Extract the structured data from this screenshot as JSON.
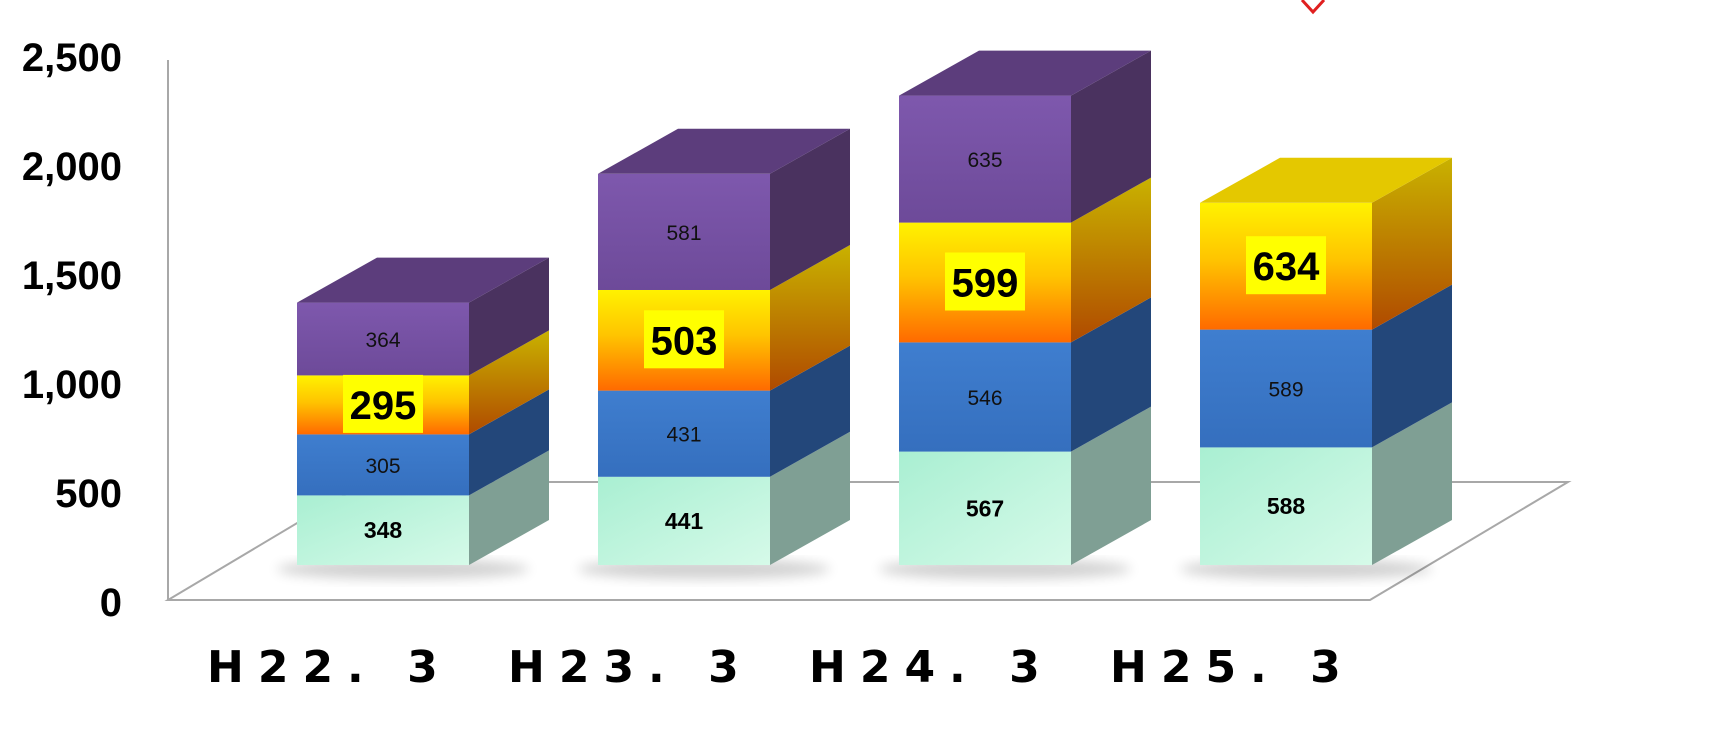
{
  "chart_data": {
    "type": "bar",
    "stacked": true,
    "three_d": true,
    "categories": [
      "H22. 3",
      "H23. 3",
      "H24. 3",
      "H25. 3"
    ],
    "series": [
      {
        "values": [
          348,
          441,
          567,
          588
        ]
      },
      {
        "values": [
          305,
          431,
          546,
          589
        ]
      },
      {
        "values": [
          295,
          503,
          599,
          634
        ]
      },
      {
        "values": [
          364,
          581,
          635,
          null
        ]
      }
    ],
    "ylim": [
      0,
      2500
    ],
    "yticks": [
      "0",
      "500",
      "1,000",
      "1,500",
      "2,000",
      "2,500"
    ],
    "title": "",
    "xlabel": "",
    "ylabel": "",
    "grid": false,
    "legend": "none"
  },
  "colors": {
    "series_front": [
      "#b5f1d9",
      "#3b79c9",
      "#ffd400",
      "#7c55a6"
    ],
    "series_side": [
      "#7f9f94",
      "#23477a",
      "#b39300",
      "#4a325f"
    ],
    "series_top": [
      "#c8f5e4",
      "#4a86d4",
      "#e4c800",
      "#5c3d7c"
    ],
    "label_highlight": "#ffff00",
    "axis": "#999999"
  }
}
